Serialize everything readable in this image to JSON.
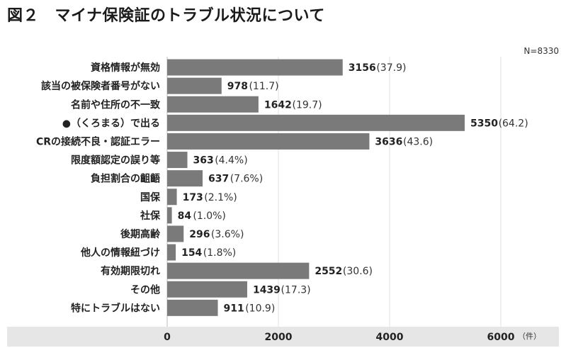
{
  "chart_data": {
    "type": "bar",
    "orientation": "horizontal",
    "title": "図２　マイナ保険証のトラブル状況について",
    "n_label": "N=8330",
    "x_unit": "（件）",
    "xlim": [
      0,
      6900
    ],
    "xticks": [
      0,
      2000,
      4000,
      6000
    ],
    "categories": [
      "資格情報が無効",
      "該当の被保険者番号がない",
      "名前や住所の不一致",
      "●（くろまる）で出る",
      "CRの接続不良・認証エラー",
      "限度額認定の誤り等",
      "負担割合の齟齬",
      "国保",
      "社保",
      "後期高齢",
      "他人の情報紐づけ",
      "有効期限切れ",
      "その他",
      "特にトラブルはない"
    ],
    "values": [
      3156,
      978,
      1642,
      5350,
      3636,
      363,
      637,
      173,
      84,
      296,
      154,
      2552,
      1439,
      911
    ],
    "percent_labels": [
      "(37.9)",
      "(11.7)",
      "(19.7)",
      "(64.2)",
      "(43.6)",
      "(4.4%)",
      "(7.6%)",
      "(2.1%)",
      "(1.0%)",
      "(3.6%)",
      "(1.8%)",
      "(30.6)",
      "(17.3)",
      "(10.9)"
    ],
    "bar_color": "#7a7a7a",
    "axis_band_color": "#e6e6e6",
    "grid_color": "#e0e0e0",
    "grid": true,
    "legend": "none"
  }
}
